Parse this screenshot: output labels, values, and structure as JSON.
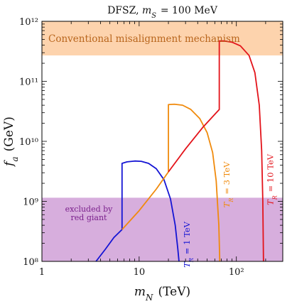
{
  "chart_data": {
    "type": "line",
    "title": "DFSZ,  m_S = 100 MeV",
    "xlabel": "m_N (TeV)",
    "ylabel": "f_a (GeV)",
    "x_scale": "log",
    "y_scale": "log",
    "xlim": [
      1,
      300
    ],
    "ylim": [
      100000000.0,
      1000000000000.0
    ],
    "x_ticks": [
      {
        "value": 1,
        "label": "1"
      },
      {
        "value": 10,
        "label": "10"
      },
      {
        "value": 100,
        "label": "10²"
      }
    ],
    "y_ticks": [
      {
        "value": 100000000.0,
        "label": "10⁸"
      },
      {
        "value": 1000000000.0,
        "label": "10⁹"
      },
      {
        "value": 10000000000.0,
        "label": "10¹⁰"
      },
      {
        "value": 100000000000.0,
        "label": "10¹¹"
      },
      {
        "value": 1000000000000.0,
        "label": "10¹²"
      }
    ],
    "regions": [
      {
        "name": "Conventional misalignment mechanism",
        "y_range": [
          270000000000.0,
          1000000000000.0
        ],
        "color": "#fdd3ad",
        "text_color": "#b8651c"
      },
      {
        "name_lines": [
          "excluded by",
          "red giant"
        ],
        "y_range": [
          100000000.0,
          1150000000.0
        ],
        "color": "#d7aedd",
        "text_color": "#7a1f8c"
      }
    ],
    "series": [
      {
        "name": "T_R = 1 TeV",
        "color": "#1414d4",
        "points": [
          [
            3.6,
            100000000.0
          ],
          [
            4.5,
            160000000.0
          ],
          [
            5.5,
            250000000.0
          ],
          [
            6.67,
            340000000.0
          ],
          [
            6.67,
            4300000000.0
          ],
          [
            7.5,
            4550000000.0
          ],
          [
            9,
            4700000000.0
          ],
          [
            10.5,
            4650000000.0
          ],
          [
            12.5,
            4300000000.0
          ],
          [
            15,
            3500000000.0
          ],
          [
            18,
            2300000000.0
          ],
          [
            21,
            1100000000.0
          ],
          [
            23.5,
            400000000.0
          ],
          [
            25,
            160000000.0
          ],
          [
            25.7,
            100000000.0
          ]
        ]
      },
      {
        "name": "T_R = 3 TeV",
        "color": "#f08a0c",
        "points": [
          [
            6.67,
            340000000.0
          ],
          [
            10,
            700000000.0
          ],
          [
            15,
            1600000000.0
          ],
          [
            20,
            3100000000.0
          ],
          [
            20,
            41000000000.0
          ],
          [
            23,
            41500000000.0
          ],
          [
            28,
            40000000000.0
          ],
          [
            34,
            34000000000.0
          ],
          [
            42,
            24000000000.0
          ],
          [
            50,
            14000000000.0
          ],
          [
            57,
            6500000000.0
          ],
          [
            62,
            2200000000.0
          ],
          [
            66,
            400000000.0
          ],
          [
            67.5,
            100000000.0
          ]
        ]
      },
      {
        "name": "T_R = 10 TeV",
        "color": "#e3131a",
        "points": [
          [
            20,
            3100000000.0
          ],
          [
            30,
            7500000000.0
          ],
          [
            45,
            17000000000.0
          ],
          [
            66.7,
            34000000000.0
          ],
          [
            66.7,
            470000000000.0
          ],
          [
            75,
            470000000000.0
          ],
          [
            90,
            450000000000.0
          ],
          [
            110,
            390000000000.0
          ],
          [
            135,
            270000000000.0
          ],
          [
            155,
            140000000000.0
          ],
          [
            172,
            40000000000.0
          ],
          [
            182,
            7000000000.0
          ],
          [
            187,
            1000000000.0
          ],
          [
            190,
            100000000.0
          ]
        ]
      }
    ],
    "curve_labels": [
      {
        "series": 0,
        "text": "T_R = 1 TeV",
        "x": 33,
        "y": 190000000.0
      },
      {
        "series": 1,
        "text": "T_R = 3 TeV",
        "x": 85,
        "y": 1900000000.0
      },
      {
        "series": 2,
        "text": "T_R = 10 TeV",
        "x": 240,
        "y": 2300000000.0
      }
    ]
  }
}
